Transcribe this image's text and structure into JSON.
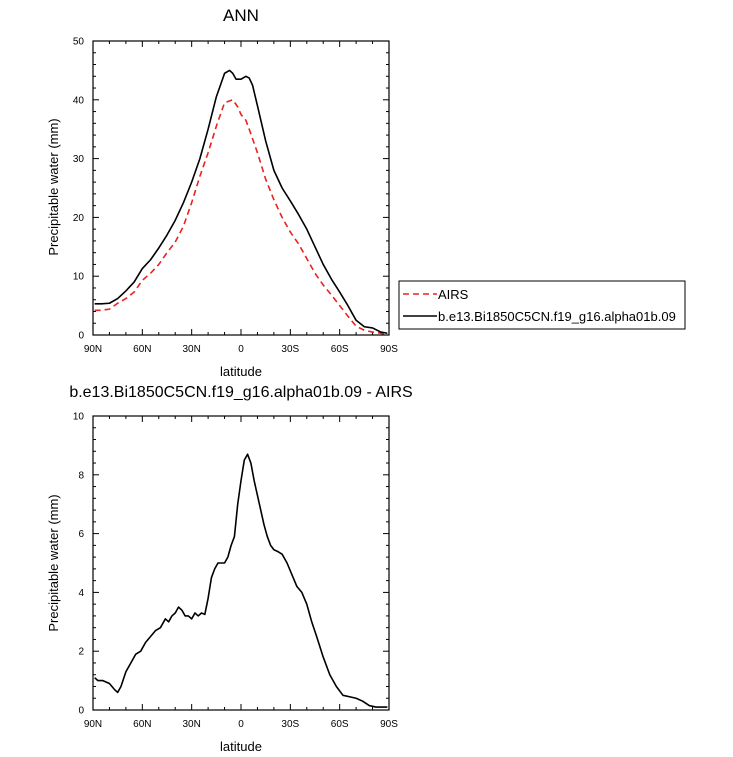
{
  "chart_data": [
    {
      "type": "line",
      "title": "ANN",
      "xlabel": "latitude",
      "ylabel": "Precipitable water (mm)",
      "xlim": [
        90,
        -90
      ],
      "ylim": [
        0,
        50
      ],
      "x_ticks": [
        90,
        60,
        30,
        0,
        -30,
        -60,
        -90
      ],
      "x_tick_labels": [
        "90N",
        "60N",
        "30N",
        "0",
        "30S",
        "60S",
        "90S"
      ],
      "y_ticks": [
        0,
        10,
        20,
        30,
        40,
        50
      ],
      "y_tick_labels": [
        "0",
        "10",
        "20",
        "30",
        "40",
        "50"
      ],
      "legend_placement": "outside-right",
      "series": [
        {
          "name": "AIRS",
          "color": "#e8231f",
          "dash": "dashed",
          "x": [
            89,
            85,
            80,
            75,
            70,
            65,
            60,
            55,
            50,
            45,
            40,
            35,
            30,
            25,
            20,
            15,
            10,
            5,
            2,
            0,
            -3,
            -5,
            -10,
            -15,
            -20,
            -25,
            -30,
            -35,
            -40,
            -45,
            -50,
            -55,
            -60,
            -65,
            -70,
            -75,
            -80,
            -85,
            -89
          ],
          "y": [
            4.2,
            4.2,
            4.4,
            5.4,
            6.2,
            7.3,
            9.3,
            10.5,
            12.0,
            14.0,
            15.8,
            18.5,
            22.5,
            27.0,
            31.0,
            35.5,
            39.5,
            40.0,
            38.8,
            37.5,
            36.5,
            35.0,
            31.0,
            26.5,
            23.0,
            20.0,
            17.5,
            15.5,
            13.0,
            10.5,
            8.5,
            6.8,
            5.0,
            3.2,
            1.5,
            0.8,
            0.5,
            0.3,
            0.0
          ]
        },
        {
          "name": "b.e13.Bi1850C5CN.f19_g16.alpha01b.09",
          "color": "#000000",
          "dash": "solid",
          "x": [
            89,
            85,
            80,
            75,
            70,
            65,
            60,
            55,
            50,
            45,
            40,
            35,
            30,
            25,
            20,
            15,
            10,
            7,
            5,
            3,
            0,
            -3,
            -5,
            -7,
            -10,
            -15,
            -20,
            -25,
            -30,
            -35,
            -40,
            -45,
            -50,
            -55,
            -60,
            -65,
            -70,
            -75,
            -80,
            -85,
            -89
          ],
          "y": [
            5.3,
            5.3,
            5.4,
            6.2,
            7.5,
            9.0,
            11.3,
            12.8,
            14.8,
            17.0,
            19.5,
            22.5,
            26.0,
            30.0,
            35.0,
            40.5,
            44.5,
            45.0,
            44.5,
            43.5,
            43.5,
            44.0,
            43.7,
            42.5,
            39.0,
            33.0,
            28.0,
            25.0,
            22.8,
            20.5,
            18.0,
            15.0,
            12.0,
            9.5,
            7.3,
            5.0,
            2.5,
            1.4,
            1.2,
            0.5,
            0.3
          ]
        }
      ]
    },
    {
      "type": "line",
      "title": "b.e13.Bi1850C5CN.f19_g16.alpha01b.09 - AIRS",
      "xlabel": "latitude",
      "ylabel": "Precipitable water (mm)",
      "xlim": [
        90,
        -90
      ],
      "ylim": [
        0,
        10
      ],
      "x_ticks": [
        90,
        60,
        30,
        0,
        -30,
        -60,
        -90
      ],
      "x_tick_labels": [
        "90N",
        "60N",
        "30N",
        "0",
        "30S",
        "60S",
        "90S"
      ],
      "y_ticks": [
        0,
        2,
        4,
        6,
        8,
        10
      ],
      "y_tick_labels": [
        "0",
        "2",
        "4",
        "6",
        "8",
        "10"
      ],
      "series": [
        {
          "color": "#000000",
          "dash": "solid",
          "x": [
            89,
            87,
            84,
            80,
            77,
            75,
            73,
            70,
            67,
            64,
            61,
            58,
            55,
            52,
            49,
            46,
            44,
            42,
            40,
            38,
            36,
            34,
            32,
            30,
            28,
            26,
            24,
            22,
            20,
            18,
            16,
            14,
            12,
            10,
            8,
            6,
            4,
            2,
            0,
            -2,
            -4,
            -6,
            -8,
            -10,
            -12,
            -14,
            -16,
            -18,
            -20,
            -22,
            -25,
            -28,
            -31,
            -34,
            -37,
            -40,
            -43,
            -46,
            -50,
            -54,
            -58,
            -62,
            -66,
            -70,
            -74,
            -78,
            -82,
            -86,
            -89
          ],
          "y": [
            1.1,
            1.0,
            1.0,
            0.9,
            0.7,
            0.6,
            0.8,
            1.3,
            1.6,
            1.9,
            2.0,
            2.3,
            2.5,
            2.7,
            2.8,
            3.1,
            3.0,
            3.2,
            3.3,
            3.5,
            3.4,
            3.2,
            3.2,
            3.1,
            3.3,
            3.2,
            3.3,
            3.25,
            3.8,
            4.5,
            4.8,
            5.0,
            5.0,
            5.0,
            5.2,
            5.6,
            5.9,
            7.0,
            7.8,
            8.5,
            8.7,
            8.4,
            7.8,
            7.3,
            6.8,
            6.3,
            5.9,
            5.6,
            5.45,
            5.4,
            5.3,
            5.0,
            4.6,
            4.2,
            4.0,
            3.6,
            3.0,
            2.5,
            1.8,
            1.2,
            0.8,
            0.5,
            0.45,
            0.4,
            0.3,
            0.15,
            0.1,
            0.1,
            0.1
          ]
        }
      ]
    }
  ]
}
